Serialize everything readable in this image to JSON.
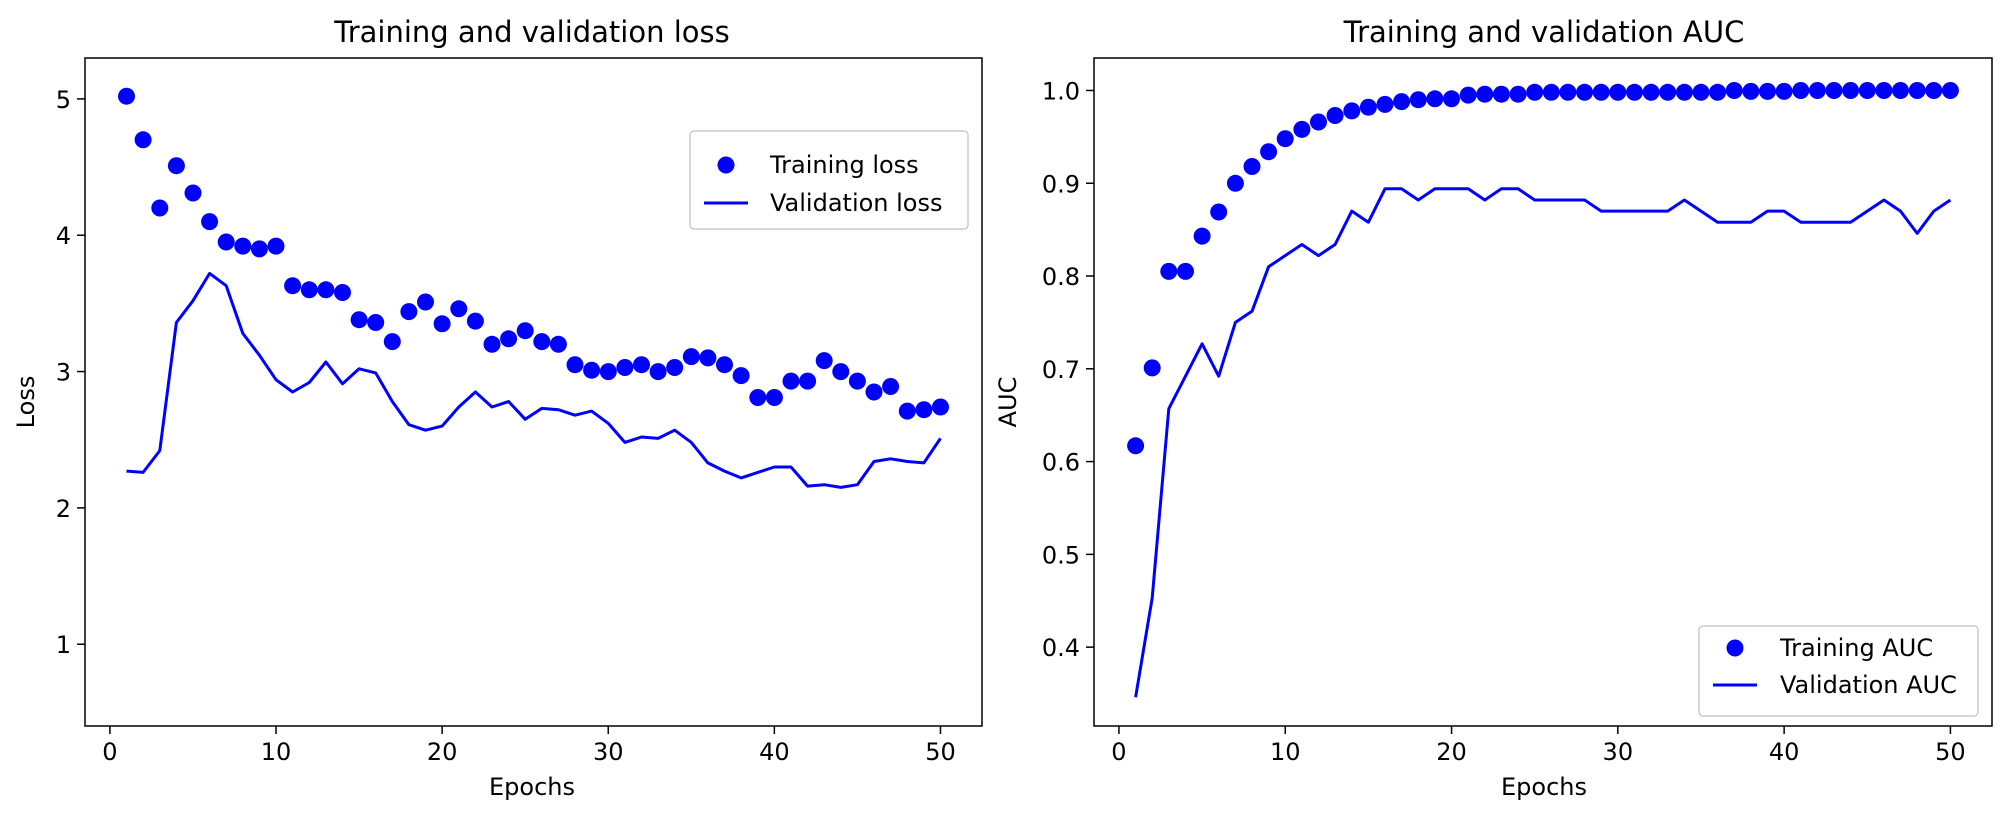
{
  "chart_data": [
    {
      "type": "line",
      "title": "Training and validation loss",
      "xlabel": "Epochs",
      "ylabel": "Loss",
      "xlim": [
        -1.5,
        52.5
      ],
      "ylim": [
        0.4,
        5.3
      ],
      "xticks": [
        0,
        10,
        20,
        30,
        40,
        50
      ],
      "yticks": [
        1,
        2,
        3,
        4,
        5
      ],
      "grid": false,
      "legend_position": "upper-right",
      "x": [
        1,
        2,
        3,
        4,
        5,
        6,
        7,
        8,
        9,
        10,
        11,
        12,
        13,
        14,
        15,
        16,
        17,
        18,
        19,
        20,
        21,
        22,
        23,
        24,
        25,
        26,
        27,
        28,
        29,
        30,
        31,
        32,
        33,
        34,
        35,
        36,
        37,
        38,
        39,
        40,
        41,
        42,
        43,
        44,
        45,
        46,
        47,
        48,
        49,
        50
      ],
      "series": [
        {
          "name": "Training loss",
          "style": "scatter",
          "color": "#0000ff",
          "values": [
            5.02,
            4.7,
            4.2,
            4.51,
            4.31,
            4.1,
            3.95,
            3.92,
            3.9,
            3.92,
            3.63,
            3.6,
            3.6,
            3.58,
            3.38,
            3.36,
            3.22,
            3.44,
            3.51,
            3.35,
            3.46,
            3.37,
            3.2,
            3.24,
            3.3,
            3.22,
            3.2,
            3.05,
            3.01,
            3.0,
            3.03,
            3.05,
            3.0,
            3.03,
            3.11,
            3.1,
            3.05,
            2.97,
            2.81,
            2.81,
            2.93,
            2.93,
            3.08,
            3.0,
            2.93,
            2.85,
            2.89,
            2.71,
            2.72,
            2.74
          ]
        },
        {
          "name": "Validation loss",
          "style": "line",
          "color": "#0000ff",
          "values": [
            2.27,
            2.26,
            2.42,
            3.36,
            3.52,
            3.72,
            3.63,
            3.28,
            3.12,
            2.94,
            2.85,
            2.92,
            3.07,
            2.91,
            3.02,
            2.99,
            2.78,
            2.61,
            2.57,
            2.6,
            2.74,
            2.85,
            2.74,
            2.78,
            2.65,
            2.73,
            2.72,
            2.68,
            2.71,
            2.62,
            2.48,
            2.52,
            2.51,
            2.57,
            2.48,
            2.33,
            2.27,
            2.22,
            2.26,
            2.3,
            2.3,
            2.16,
            2.17,
            2.15,
            2.17,
            2.34,
            2.36,
            2.34,
            2.33,
            2.51
          ]
        }
      ]
    },
    {
      "type": "line",
      "title": "Training and validation AUC",
      "xlabel": "Epochs",
      "ylabel": "AUC",
      "xlim": [
        -1.5,
        52.5
      ],
      "ylim": [
        0.315,
        1.035
      ],
      "xticks": [
        0,
        10,
        20,
        30,
        40,
        50
      ],
      "yticks": [
        "0.4",
        "0.5",
        "0.6",
        "0.7",
        "0.8",
        "0.9",
        "1.0"
      ],
      "grid": false,
      "legend_position": "lower-right",
      "x": [
        1,
        2,
        3,
        4,
        5,
        6,
        7,
        8,
        9,
        10,
        11,
        12,
        13,
        14,
        15,
        16,
        17,
        18,
        19,
        20,
        21,
        22,
        23,
        24,
        25,
        26,
        27,
        28,
        29,
        30,
        31,
        32,
        33,
        34,
        35,
        36,
        37,
        38,
        39,
        40,
        41,
        42,
        43,
        44,
        45,
        46,
        47,
        48,
        49,
        50
      ],
      "series": [
        {
          "name": "Training AUC",
          "style": "scatter",
          "color": "#0000ff",
          "values": [
            0.617,
            0.701,
            0.805,
            0.805,
            0.843,
            0.869,
            0.9,
            0.918,
            0.934,
            0.948,
            0.958,
            0.966,
            0.973,
            0.978,
            0.982,
            0.985,
            0.988,
            0.99,
            0.991,
            0.991,
            0.995,
            0.996,
            0.996,
            0.996,
            0.998,
            0.998,
            0.998,
            0.998,
            0.998,
            0.998,
            0.998,
            0.998,
            0.998,
            0.998,
            0.998,
            0.998,
            1.0,
            0.999,
            0.999,
            0.999,
            1.0,
            1.0,
            1.0,
            1.0,
            1.0,
            1.0,
            1.0,
            1.0,
            1.0,
            1.0
          ]
        },
        {
          "name": "Validation AUC",
          "style": "line",
          "color": "#0000ff",
          "values": [
            0.346,
            0.453,
            0.657,
            0.692,
            0.727,
            0.692,
            0.75,
            0.762,
            0.81,
            0.822,
            0.834,
            0.822,
            0.834,
            0.87,
            0.858,
            0.894,
            0.894,
            0.882,
            0.894,
            0.894,
            0.894,
            0.882,
            0.894,
            0.894,
            0.882,
            0.882,
            0.882,
            0.882,
            0.87,
            0.87,
            0.87,
            0.87,
            0.87,
            0.882,
            0.87,
            0.858,
            0.858,
            0.858,
            0.87,
            0.87,
            0.858,
            0.858,
            0.858,
            0.858,
            0.87,
            0.882,
            0.87,
            0.846,
            0.87,
            0.882
          ]
        }
      ]
    }
  ]
}
